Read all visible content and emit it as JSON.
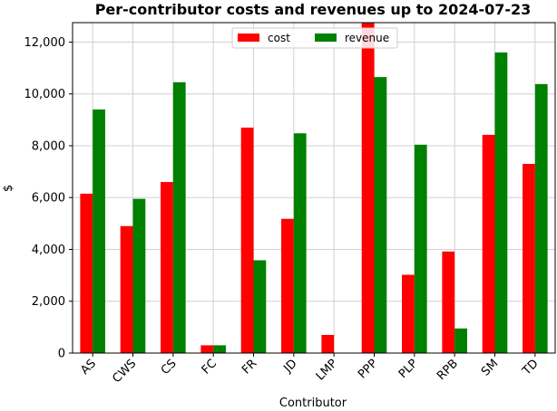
{
  "chart_data": {
    "type": "bar",
    "title": "Per-contributor costs and revenues up to 2024-07-23",
    "xlabel": "Contributor",
    "ylabel": "$",
    "categories": [
      "AS",
      "CWS",
      "CS",
      "FC",
      "FR",
      "JD",
      "LMP",
      "PPP",
      "PLP",
      "RPB",
      "SM",
      "TD"
    ],
    "series": [
      {
        "name": "cost",
        "color": "#ff0000",
        "values": [
          6150,
          4900,
          6600,
          300,
          8700,
          5180,
          700,
          12800,
          3020,
          3920,
          8420,
          7300
        ]
      },
      {
        "name": "revenue",
        "color": "#008000",
        "values": [
          9400,
          5950,
          10450,
          300,
          3580,
          8480,
          0,
          10650,
          8040,
          950,
          11600,
          10380
        ]
      }
    ],
    "ylim": [
      0,
      12750
    ],
    "yticks": [
      0,
      2000,
      4000,
      6000,
      8000,
      10000,
      12000
    ],
    "ytick_labels": [
      "0",
      "2,000",
      "4,000",
      "6,000",
      "8,000",
      "10,000",
      "12,000"
    ],
    "grid": true,
    "legend_position": "top-center"
  }
}
